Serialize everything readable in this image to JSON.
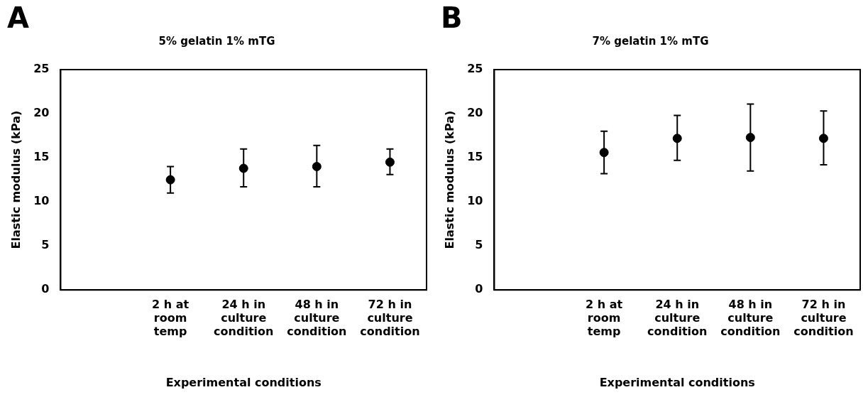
{
  "chart_data": [
    {
      "type": "scatter",
      "title": "5% gelatin 1% mTG",
      "xlabel": "Experimental conditions",
      "ylabel": "Elastic modulus (kPa)",
      "annotations": [
        "A"
      ],
      "categories": [
        null,
        "2 h at room temp",
        "24 h in culture condition",
        "48 h in culture condition",
        "72 h in culture condition"
      ],
      "values": [
        null,
        12.5,
        13.8,
        14.0,
        14.5
      ],
      "errors": [
        null,
        [
          11.0,
          14.0
        ],
        [
          11.7,
          16.0
        ],
        [
          11.7,
          16.4
        ],
        [
          13.1,
          16.0
        ]
      ],
      "color": "#000000",
      "marker": "circle",
      "ylim": [
        0,
        25
      ],
      "yticks": [
        0,
        5,
        10,
        15,
        20,
        25
      ],
      "grid": false,
      "legend": false
    },
    {
      "type": "scatter",
      "title": "7% gelatin 1% mTG",
      "xlabel": "Experimental conditions",
      "ylabel": "Elastic modulus (kPa)",
      "annotations": [
        "B"
      ],
      "categories": [
        null,
        "2 h at room temp",
        "24 h in culture condition",
        "48 h in culture condition",
        "72 h in culture condition"
      ],
      "values": [
        null,
        15.6,
        17.2,
        17.3,
        17.2
      ],
      "errors": [
        null,
        [
          13.2,
          18.0
        ],
        [
          14.7,
          19.8
        ],
        [
          13.5,
          21.1
        ],
        [
          14.2,
          20.3
        ]
      ],
      "color": "#000000",
      "marker": "circle",
      "ylim": [
        0,
        25
      ],
      "yticks": [
        0,
        5,
        10,
        15,
        20,
        25
      ],
      "grid": false,
      "legend": false
    }
  ]
}
